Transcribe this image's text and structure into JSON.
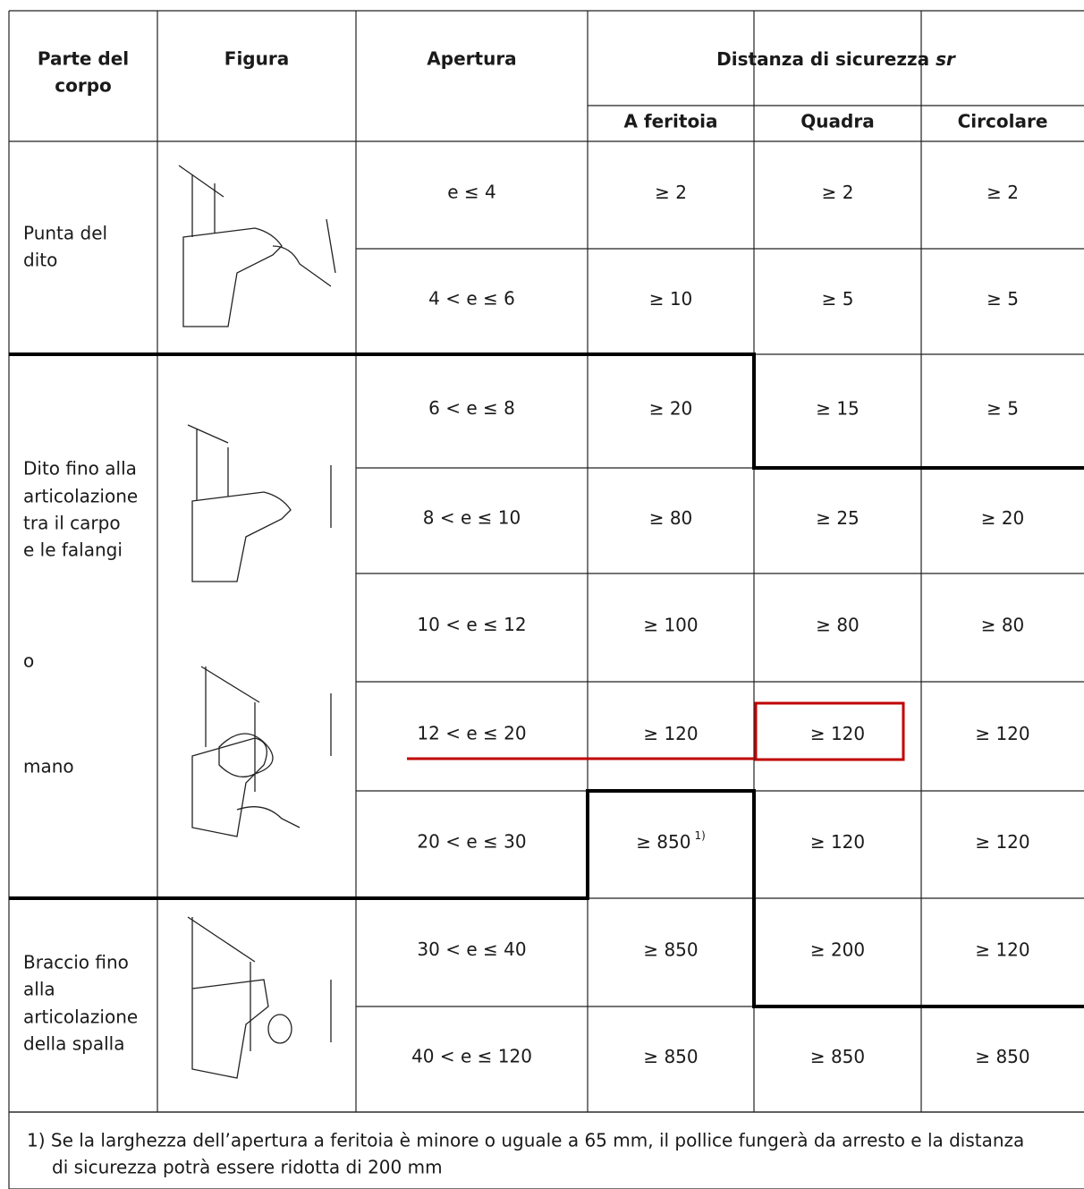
{
  "header": {
    "body_part": [
      "Parte del",
      "corpo"
    ],
    "figure": "Figura",
    "opening": "Apertura",
    "distance_title": "Distanza di sicurezza",
    "distance_symbol": "sr",
    "slot": "A feritoia",
    "square": "Quadra",
    "circular": "Circolare"
  },
  "body_parts": [
    {
      "lines": [
        "Punta del",
        "dito"
      ]
    },
    {
      "lines": [
        "Dito fino alla",
        "articolazione",
        "tra il carpo",
        "e le falangi"
      ]
    },
    {
      "lines": [
        "o"
      ]
    },
    {
      "lines": [
        "mano"
      ]
    },
    {
      "lines": [
        "Braccio fino",
        "alla",
        "articolazione",
        "della spalla"
      ]
    }
  ],
  "rows": [
    {
      "opening": "e ≤   4",
      "slot": "≥   2",
      "square": "≥   2",
      "circular": "≥   2"
    },
    {
      "opening": "4 < e ≤   6",
      "slot": "≥   10",
      "square": "≥   5",
      "circular": "≥   5"
    },
    {
      "opening": "6 < e ≤   8",
      "slot": "≥   20",
      "square": "≥   15",
      "circular": "≥   5"
    },
    {
      "opening": "8 < e ≤   10",
      "slot": "≥   80",
      "square": "≥   25",
      "circular": "≥   20"
    },
    {
      "opening": "10 < e ≤   12",
      "slot": "≥   100",
      "square": "≥   80",
      "circular": "≥   80"
    },
    {
      "opening": "12 < e ≤   20",
      "slot": "≥   120",
      "square": "≥   120",
      "circular": "≥   120"
    },
    {
      "opening": "20 < e ≤   30",
      "slot": "≥   850",
      "slot_note": "1)",
      "square": "≥   120",
      "circular": "≥   120"
    },
    {
      "opening": "30 < e ≤   40",
      "slot": "≥   850",
      "square": "≥   200",
      "circular": "≥   120"
    },
    {
      "opening": "40 < e ≤   120",
      "slot": "≥   850",
      "square": "≥   850",
      "circular": "≥   850"
    }
  ],
  "footnote": [
    "1)  Se la larghezza dell’apertura a feritoia è minore o uguale a 65 mm, il pollice fungerà da arresto e la distanza",
    "di sicurezza potrà essere ridotta di 200 mm"
  ]
}
